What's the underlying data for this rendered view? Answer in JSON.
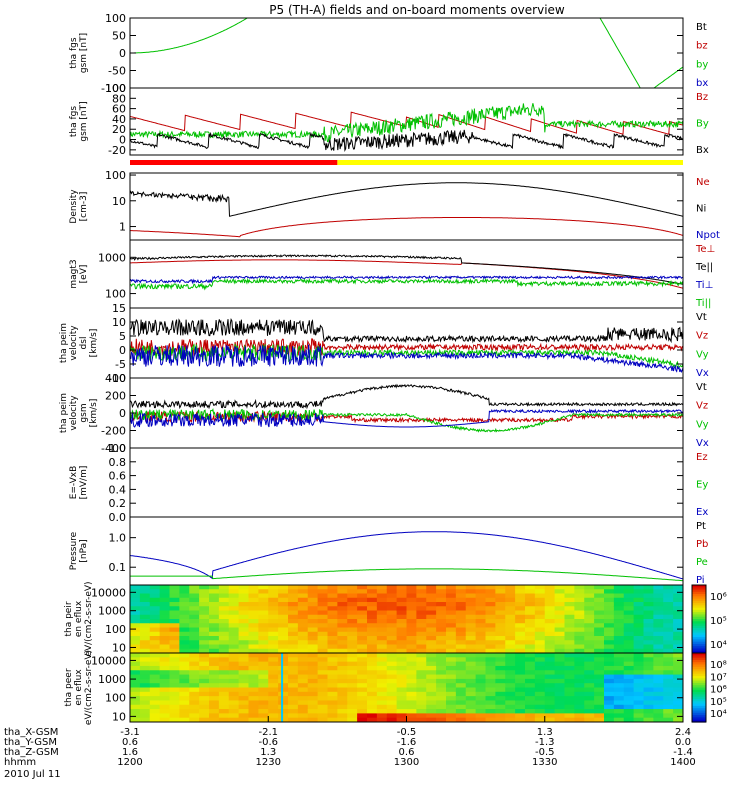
{
  "title": "P5 (TH-A) fields and on-board moments overview",
  "date": "2010 Jul 11",
  "chart_data": {
    "type": "line",
    "title": "P5 (TH-A) fields and on-board moments overview",
    "x": {
      "hhmm": [
        "1200",
        "1230",
        "1300",
        "1330",
        "1400"
      ],
      "X_GSM": [
        "-3.1",
        "-2.1",
        "-0.5",
        "1.3",
        "2.4"
      ],
      "Y_GSM": [
        "0.6",
        "-0.6",
        "-1.6",
        "-1.3",
        "0.0"
      ],
      "Z_GSM": [
        "1.6",
        "1.3",
        "0.6",
        "-0.5",
        "-1.4"
      ],
      "row_labels": [
        "tha_X-GSM",
        "tha_Y-GSM",
        "tha_Z-GSM",
        "hhmm"
      ]
    },
    "panels": [
      {
        "id": "fgs_zoom",
        "ylabel": "tha fgs gsm [nT]",
        "ylim": [
          -100,
          100
        ],
        "ticks": [
          "100",
          "50",
          "0",
          "-50",
          "-100"
        ],
        "legend": [
          {
            "name": "Bt",
            "color": "#000000"
          },
          {
            "name": "bz",
            "color": "#c00000"
          },
          {
            "name": "by",
            "color": "#00c000"
          },
          {
            "name": "bx",
            "color": "#0000c0"
          }
        ]
      },
      {
        "id": "fgs",
        "ylabel": "tha fgs gsm [nT]",
        "ylim": [
          -30,
          100
        ],
        "ticks": [
          "100",
          "80",
          "60",
          "40",
          "20",
          "0",
          "-20"
        ],
        "legend": [
          {
            "name": "Bz",
            "color": "#c00000"
          },
          {
            "name": "By",
            "color": "#00c000"
          },
          {
            "name": "Bx",
            "color": "#000000"
          }
        ],
        "mode_bar": [
          {
            "color": "#ff0000",
            "from": "1200",
            "to": "1245"
          },
          {
            "color": "#ffff00",
            "from": "1245",
            "to": "1400"
          }
        ]
      },
      {
        "id": "density",
        "ylabel": "Density [cm-3]",
        "ylim": [
          0.3,
          120
        ],
        "log": true,
        "ticks": [
          "100",
          "10",
          "1"
        ],
        "legend": [
          {
            "name": "Ne",
            "color": "#c00000"
          },
          {
            "name": "Ni",
            "color": "#000000"
          },
          {
            "name": "Npot",
            "color": "#0000c0"
          }
        ]
      },
      {
        "id": "temperature",
        "ylabel": "magt3 [eV]",
        "ylim": [
          40,
          3000
        ],
        "log": true,
        "ticks": [
          "1000",
          "100"
        ],
        "legend": [
          {
            "name": "Te⊥",
            "color": "#c00000"
          },
          {
            "name": "Te||",
            "color": "#000000"
          },
          {
            "name": "Ti⊥",
            "color": "#0000c0"
          },
          {
            "name": "Ti||",
            "color": "#00c000"
          }
        ]
      },
      {
        "id": "peim_dsl",
        "ylabel": "tha peim velocity dsl [km/s]",
        "ylim": [
          -10,
          15
        ],
        "ticks": [
          "15",
          "10",
          "5",
          "0",
          "-5",
          "-10"
        ],
        "legend": [
          {
            "name": "Vt",
            "color": "#000000"
          },
          {
            "name": "Vz",
            "color": "#c00000"
          },
          {
            "name": "Vy",
            "color": "#00c000"
          },
          {
            "name": "Vx",
            "color": "#0000c0"
          }
        ]
      },
      {
        "id": "peim_gsm",
        "ylabel": "tha peim velocity gsm [km/s]",
        "ylim": [
          -400,
          400
        ],
        "ticks": [
          "400",
          "200",
          "0",
          "-200",
          "-400"
        ],
        "legend": [
          {
            "name": "Vt",
            "color": "#000000"
          },
          {
            "name": "Vz",
            "color": "#c00000"
          },
          {
            "name": "Vy",
            "color": "#00c000"
          },
          {
            "name": "Vx",
            "color": "#0000c0"
          }
        ]
      },
      {
        "id": "efield",
        "ylabel": "E=-VxB [mV/m]",
        "ylim": [
          0,
          1
        ],
        "ticks": [
          "1.0",
          "0.8",
          "0.6",
          "0.4",
          "0.2",
          "0.0"
        ],
        "legend": [
          {
            "name": "Ez",
            "color": "#c00000"
          },
          {
            "name": "Ey",
            "color": "#00c000"
          },
          {
            "name": "Ex",
            "color": "#0000c0"
          }
        ]
      },
      {
        "id": "pressure",
        "ylabel": "Pressure [nPa]",
        "ylim": [
          0.025,
          5
        ],
        "log": true,
        "ticks": [
          "1.0",
          "0.1"
        ],
        "legend": [
          {
            "name": "Pt",
            "color": "#000000"
          },
          {
            "name": "Pb",
            "color": "#c00000"
          },
          {
            "name": "Pe",
            "color": "#00c000"
          },
          {
            "name": "Pi",
            "color": "#0000c0"
          }
        ]
      },
      {
        "id": "peir_spec",
        "type": "heatmap",
        "ylabel": "tha peir en eflux eV/(cm2-s-sr-eV)",
        "ylim": [
          5,
          25000
        ],
        "log": true,
        "ticks": [
          "10000",
          "1000",
          "100",
          "10"
        ],
        "colorbar_ticks": [
          "10⁶",
          "10⁵",
          "10⁴"
        ]
      },
      {
        "id": "peer_spec",
        "type": "heatmap",
        "ylabel": "tha peer en eflux eV/(cm2-s-sr-eV)",
        "ylim": [
          5,
          25000
        ],
        "log": true,
        "ticks": [
          "10000",
          "1000",
          "100",
          "10"
        ],
        "colorbar_ticks": [
          "10⁸",
          "10⁷",
          "10⁶",
          "10⁵",
          "10⁴"
        ]
      }
    ]
  }
}
